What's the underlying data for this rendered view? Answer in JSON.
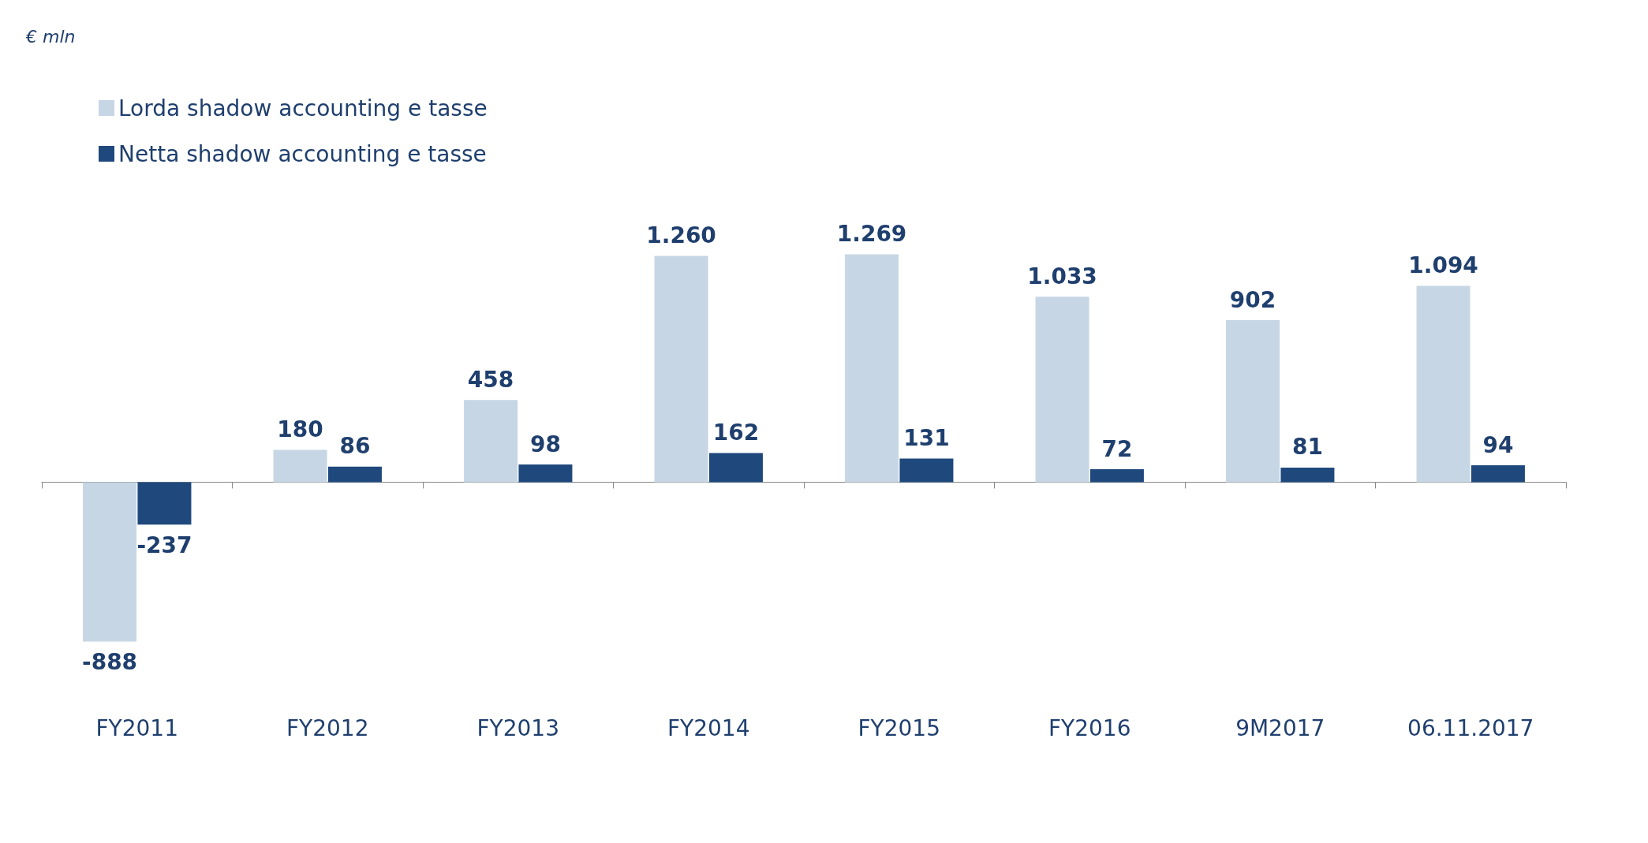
{
  "chart_data": {
    "type": "bar",
    "annotations": [
      "€ mln"
    ],
    "categories": [
      "FY2011",
      "FY2012",
      "FY2013",
      "FY2014",
      "FY2015",
      "FY2016",
      "9M2017",
      "06.11.2017"
    ],
    "series": [
      {
        "name": "Lorda shadow accounting e tasse",
        "color": "#c6d6e4",
        "values": [
          -888,
          180,
          458,
          1260,
          1269,
          1033,
          902,
          1094
        ],
        "value_labels": [
          "-888",
          "180",
          "458",
          "1.260",
          "1.269",
          "1.033",
          "902",
          "1.094"
        ]
      },
      {
        "name": "Netta shadow accounting e tasse",
        "color": "#1f497d",
        "values": [
          -237,
          86,
          98,
          162,
          131,
          72,
          81,
          94
        ],
        "value_labels": [
          "-237",
          "86",
          "98",
          "162",
          "131",
          "72",
          "81",
          "94"
        ]
      }
    ],
    "legend": "top left"
  }
}
